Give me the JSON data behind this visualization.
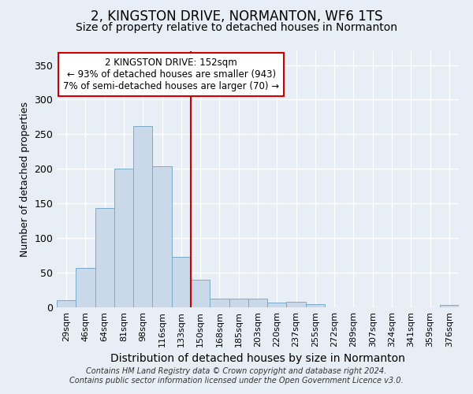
{
  "title": "2, KINGSTON DRIVE, NORMANTON, WF6 1TS",
  "subtitle": "Size of property relative to detached houses in Normanton",
  "xlabel": "Distribution of detached houses by size in Normanton",
  "ylabel": "Number of detached properties",
  "footnote1": "Contains HM Land Registry data © Crown copyright and database right 2024.",
  "footnote2": "Contains public sector information licensed under the Open Government Licence v3.0.",
  "bar_color": "#c9d9ea",
  "bar_edge_color": "#7aaac8",
  "bin_labels": [
    "29sqm",
    "46sqm",
    "64sqm",
    "81sqm",
    "98sqm",
    "116sqm",
    "133sqm",
    "150sqm",
    "168sqm",
    "185sqm",
    "203sqm",
    "220sqm",
    "237sqm",
    "255sqm",
    "272sqm",
    "289sqm",
    "307sqm",
    "324sqm",
    "341sqm",
    "359sqm",
    "376sqm"
  ],
  "bar_heights": [
    10,
    57,
    143,
    200,
    262,
    204,
    73,
    40,
    12,
    12,
    13,
    7,
    8,
    4,
    0,
    0,
    0,
    0,
    0,
    0,
    3
  ],
  "vline_index": 7,
  "vline_color": "#cc0000",
  "annotation_line1": "2 KINGSTON DRIVE: 152sqm",
  "annotation_line2": "← 93% of detached houses are smaller (943)",
  "annotation_line3": "7% of semi-detached houses are larger (70) →",
  "annotation_box_color": "#ffffff",
  "annotation_box_edge": "#cc0000",
  "ylim": [
    0,
    370
  ],
  "yticks": [
    0,
    50,
    100,
    150,
    200,
    250,
    300,
    350
  ],
  "bg_color": "#e8eef5",
  "grid_color": "#ffffff",
  "title_fontsize": 12,
  "subtitle_fontsize": 10,
  "xlabel_fontsize": 10,
  "ylabel_fontsize": 9,
  "tick_fontsize": 8,
  "annotation_fontsize": 8.5,
  "footnote_fontsize": 7
}
